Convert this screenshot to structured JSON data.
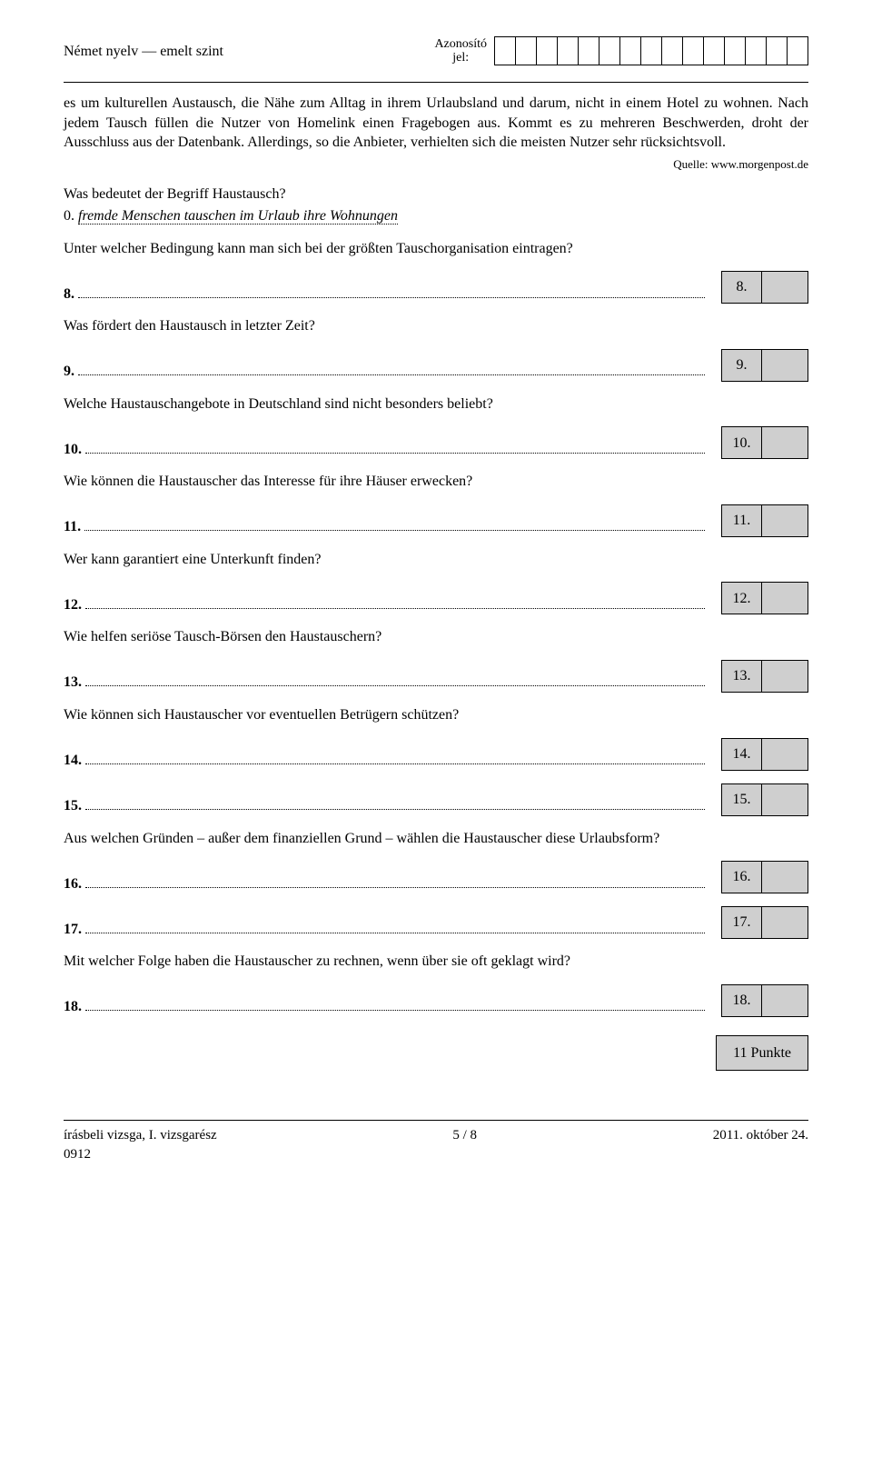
{
  "header": {
    "left": "Német nyelv — emelt szint",
    "id_label_line1": "Azonosító",
    "id_label_line2": "jel:",
    "id_cell_count": 15
  },
  "passage": "es um kulturellen Austausch, die Nähe zum Alltag in ihrem Urlaubsland und darum, nicht in einem Hotel zu wohnen. Nach jedem Tausch füllen die Nutzer von Homelink einen Fragebogen aus. Kommt es zu mehreren Beschwerden, droht der Ausschluss aus der Datenbank. Allerdings, so die Anbieter, verhielten sich die meisten Nutzer sehr rücksichtsvoll.",
  "source": "Quelle: www.morgenpost.de",
  "example": {
    "question": "Was bedeutet der Begriff Haustausch?",
    "num": "0.",
    "answer": "fremde Menschen tauschen im Urlaub ihre Wohnungen"
  },
  "questions": [
    {
      "prompt": "Unter welcher Bedingung kann man sich bei der größten Tauschorganisation eintragen?",
      "nums": [
        "8."
      ],
      "boxes": [
        "8."
      ]
    },
    {
      "prompt": "Was fördert den Haustausch in letzter Zeit?",
      "nums": [
        "9."
      ],
      "boxes": [
        "9."
      ]
    },
    {
      "prompt": "Welche Haustauschangebote in Deutschland sind nicht besonders beliebt?",
      "nums": [
        "10."
      ],
      "boxes": [
        "10."
      ]
    },
    {
      "prompt": "Wie können die Haustauscher das Interesse für ihre Häuser erwecken?",
      "nums": [
        "11."
      ],
      "boxes": [
        "11."
      ]
    },
    {
      "prompt": "Wer kann garantiert eine Unterkunft finden?",
      "nums": [
        "12."
      ],
      "boxes": [
        "12."
      ]
    },
    {
      "prompt": "Wie helfen seriöse Tausch-Börsen den Haustauschern?",
      "nums": [
        "13."
      ],
      "boxes": [
        "13."
      ]
    },
    {
      "prompt": "Wie können sich Haustauscher vor eventuellen Betrügern schützen?",
      "nums": [
        "14.",
        "15."
      ],
      "boxes": [
        "14.",
        "15."
      ]
    },
    {
      "prompt": "Aus welchen Gründen – außer dem finanziellen Grund – wählen die Haustauscher diese Urlaubsform?",
      "nums": [
        "16.",
        "17."
      ],
      "boxes": [
        "16.",
        "17."
      ]
    },
    {
      "prompt": "Mit welcher Folge haben die Haustauscher zu rechnen, wenn über sie oft geklagt wird?",
      "nums": [
        "18."
      ],
      "boxes": [
        "18."
      ]
    }
  ],
  "points_label": "11 Punkte",
  "footer": {
    "left_line1": "írásbeli vizsga, I. vizsgarész",
    "left_line2": "0912",
    "center": "5 / 8",
    "right": "2011. október 24."
  }
}
